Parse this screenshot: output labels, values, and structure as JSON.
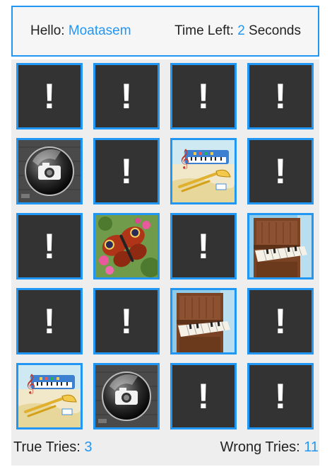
{
  "header": {
    "greeting_label": "Hello:",
    "player_name": "Moatasem",
    "time_label": "Time Left:",
    "time_value": "2",
    "time_unit": "Seconds"
  },
  "cards": [
    {
      "state": "hidden",
      "symbol": "!"
    },
    {
      "state": "hidden",
      "symbol": "!"
    },
    {
      "state": "hidden",
      "symbol": "!"
    },
    {
      "state": "hidden",
      "symbol": "!"
    },
    {
      "state": "revealed",
      "image": "camera"
    },
    {
      "state": "hidden",
      "symbol": "!"
    },
    {
      "state": "revealed",
      "image": "music"
    },
    {
      "state": "hidden",
      "symbol": "!"
    },
    {
      "state": "hidden",
      "symbol": "!"
    },
    {
      "state": "revealed",
      "image": "butterfly"
    },
    {
      "state": "hidden",
      "symbol": "!"
    },
    {
      "state": "revealed",
      "image": "piano"
    },
    {
      "state": "hidden",
      "symbol": "!"
    },
    {
      "state": "hidden",
      "symbol": "!"
    },
    {
      "state": "revealed",
      "image": "piano"
    },
    {
      "state": "hidden",
      "symbol": "!"
    },
    {
      "state": "revealed",
      "image": "music"
    },
    {
      "state": "revealed",
      "image": "camera"
    },
    {
      "state": "hidden",
      "symbol": "!"
    },
    {
      "state": "hidden",
      "symbol": "!"
    }
  ],
  "footer": {
    "true_label": "True Tries:",
    "true_value": "3",
    "wrong_label": "Wrong Tries:",
    "wrong_value": "11"
  },
  "colors": {
    "accent": "#2196f3",
    "card_back": "#333333",
    "board_bg": "#eeeeee",
    "header_bg": "#f6f6f6"
  }
}
